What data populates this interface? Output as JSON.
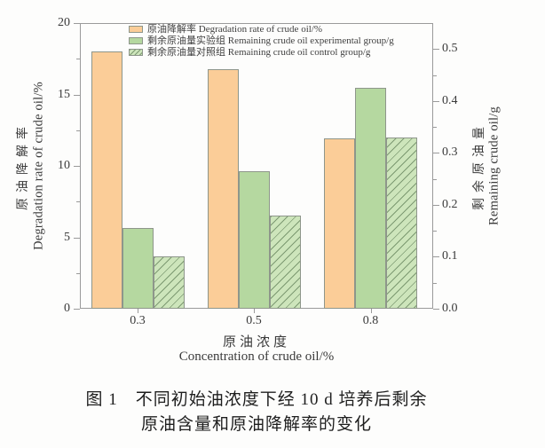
{
  "figure": {
    "caption_line1": "图 1　不同初始油浓度下经 10 d 培养后剩余",
    "caption_line2": "原油含量和原油降解率的变化"
  },
  "chart_data": {
    "type": "bar",
    "categories": [
      "0.3",
      "0.5",
      "0.8"
    ],
    "series": [
      {
        "key": "degradation",
        "name": "原油降解率 Degradation rate of crude oil/%",
        "axis": "left",
        "values": [
          18.0,
          16.8,
          11.9
        ],
        "fill": "#fbcd98",
        "pattern": "solid"
      },
      {
        "key": "experimental",
        "name": "剩余原油量实验组 Remaining crude oil experimental group/g",
        "axis": "right",
        "values": [
          0.155,
          0.265,
          0.425
        ],
        "fill": "#b5d8a0",
        "pattern": "solid"
      },
      {
        "key": "control",
        "name": "剩余原油量对照组 Remaining crude oil control group/g",
        "axis": "right",
        "values": [
          0.1,
          0.18,
          0.33
        ],
        "fill": "#cde5bb",
        "pattern": "hatch",
        "hatch_color": "#7d9a72"
      }
    ],
    "xlabel_zh": "原油浓度",
    "xlabel_en": "Concentration of crude oil/%",
    "left_axis": {
      "label_zh": "原油降解率",
      "label_en": "Degradation rate of crude oil/%",
      "ylim": [
        0,
        20
      ],
      "ticks": [
        "0",
        "5",
        "10",
        "15",
        "20"
      ],
      "minor_ticks": [
        2.5,
        7.5,
        12.5,
        17.5
      ]
    },
    "right_axis": {
      "label_zh": "剩余原油量",
      "label_en": "Remaining crude oil/g",
      "ylim": [
        0,
        0.55
      ],
      "ticks": [
        "0.0",
        "0.1",
        "0.2",
        "0.3",
        "0.4",
        "0.5"
      ],
      "minor_ticks": [
        0.05,
        0.15,
        0.25,
        0.35,
        0.45
      ]
    },
    "legend_position": "inside-top-left",
    "grid": false
  },
  "colors": {
    "frame": "#9a9a9a",
    "bar_border": "#8e968b",
    "orange_fill": "#fbcd98",
    "green_fill": "#b5d8a0",
    "hatch_fill": "#cde5bb",
    "hatch_line": "#7d9a72",
    "text": "#3a3a3a"
  }
}
